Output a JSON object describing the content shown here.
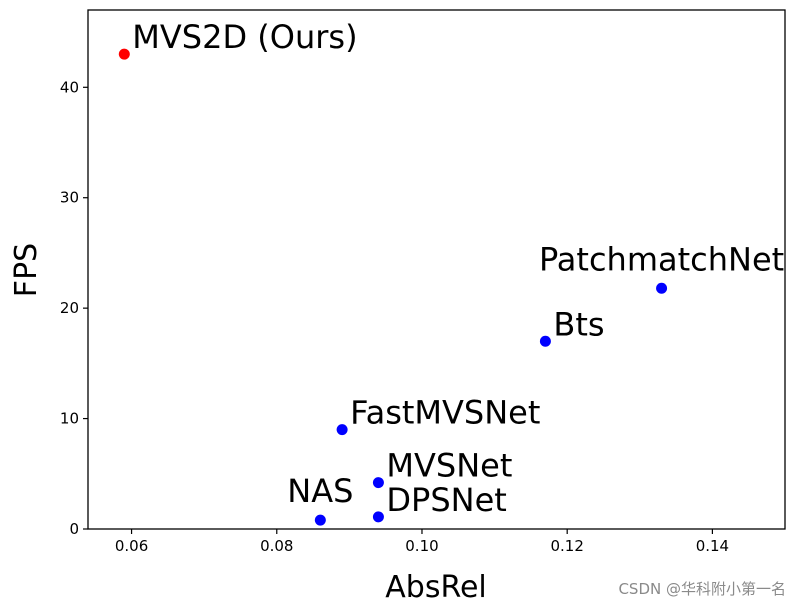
{
  "chart_data": {
    "type": "scatter",
    "xlabel": "AbsRel",
    "ylabel": "FPS",
    "xlim": [
      0.054,
      0.15
    ],
    "ylim": [
      0,
      47
    ],
    "xticks": [
      0.06,
      0.08,
      0.1,
      0.12,
      0.14
    ],
    "xtick_labels": [
      "0.06",
      "0.08",
      "0.10",
      "0.12",
      "0.14"
    ],
    "yticks": [
      0,
      10,
      20,
      30,
      40
    ],
    "ytick_labels": [
      "0",
      "10",
      "20",
      "30",
      "40"
    ],
    "grid": false,
    "points": [
      {
        "label": "MVS2D (Ours)",
        "x": 0.059,
        "y": 43.0,
        "color": "#ff0000",
        "label_side": "right"
      },
      {
        "label": "PatchmatchNet",
        "x": 0.133,
        "y": 21.8,
        "color": "#0000ff",
        "label_side": "above"
      },
      {
        "label": "Bts",
        "x": 0.117,
        "y": 17.0,
        "color": "#0000ff",
        "label_side": "right"
      },
      {
        "label": "FastMVSNet",
        "x": 0.089,
        "y": 9.0,
        "color": "#0000ff",
        "label_side": "right"
      },
      {
        "label": "MVSNet",
        "x": 0.094,
        "y": 4.2,
        "color": "#0000ff",
        "label_side": "right"
      },
      {
        "label": "DPSNet",
        "x": 0.094,
        "y": 1.1,
        "color": "#0000ff",
        "label_side": "right"
      },
      {
        "label": "NAS",
        "x": 0.086,
        "y": 0.8,
        "color": "#0000ff",
        "label_side": "above"
      }
    ]
  },
  "watermark": "CSDN @华科附小第一名"
}
